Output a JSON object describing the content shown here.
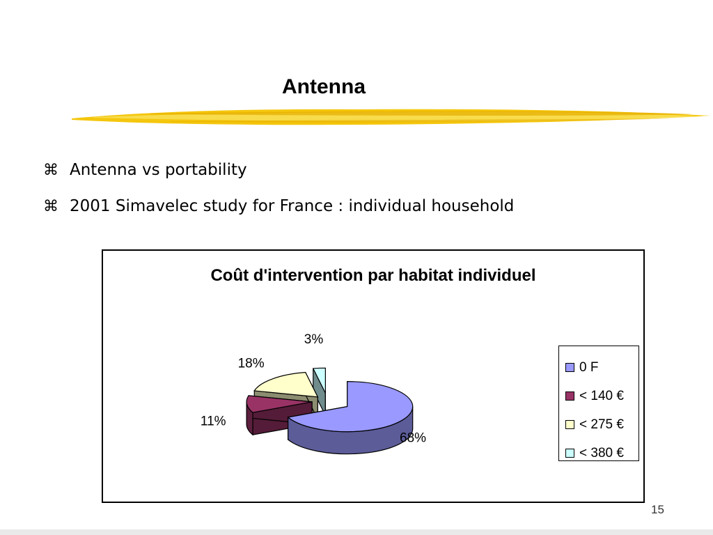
{
  "slide": {
    "title": "Antenna",
    "bullets": [
      {
        "icon": "command-symbol-icon",
        "glyph": "⌘",
        "text": "Antenna vs portability"
      },
      {
        "icon": "command-symbol-icon",
        "glyph": "⌘",
        "text": "2001 Simavelec study for France : individual household"
      }
    ],
    "page_number": "15",
    "accent_color": "#f2c200"
  },
  "chart_data": {
    "type": "pie",
    "title": "Coût d'intervention par habitat individuel",
    "categories": [
      "0 F",
      "< 140 €",
      "< 275 €",
      "< 380 €"
    ],
    "values": [
      68,
      11,
      18,
      3
    ],
    "labels": [
      "68%",
      "11%",
      "18%",
      "3%"
    ],
    "colors": [
      "#9999ff",
      "#993366",
      "#ffffcc",
      "#ccffff"
    ],
    "exploded": true,
    "three_d": true,
    "legend_position": "right"
  }
}
